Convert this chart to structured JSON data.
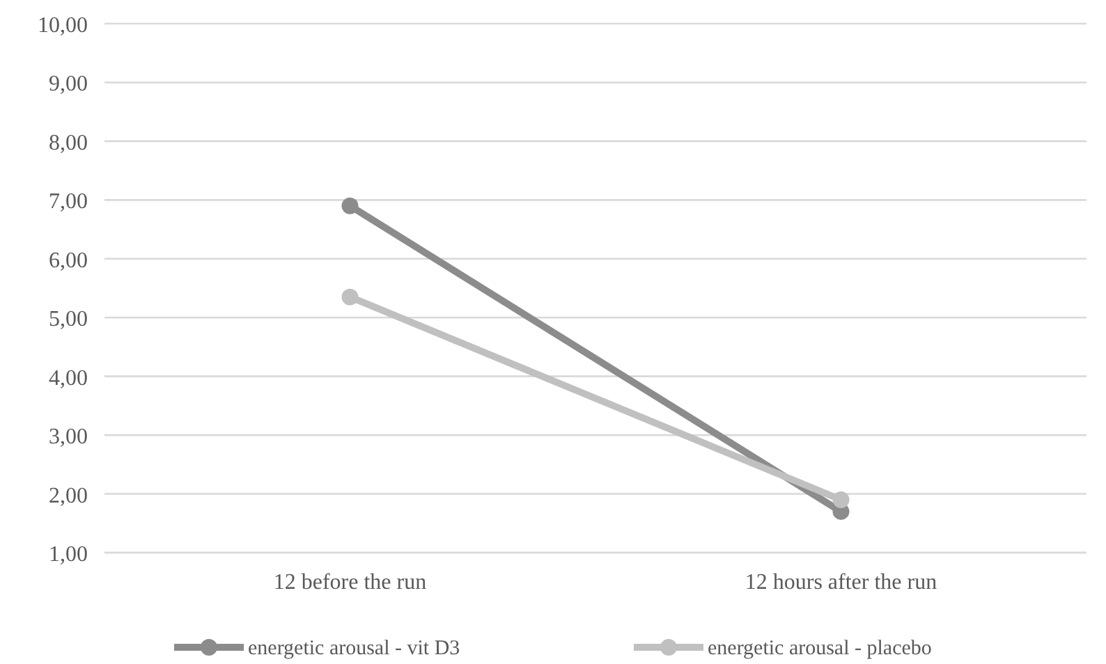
{
  "chart_data": {
    "type": "line",
    "categories": [
      "12 before the run",
      "12 hours after the run"
    ],
    "series": [
      {
        "name": "energetic arousal - vit D3",
        "color": "#8c8c8c",
        "values": [
          6.9,
          1.7
        ]
      },
      {
        "name": "energetic arousal - placebo",
        "color": "#c0c0c0",
        "values": [
          5.35,
          1.9
        ]
      }
    ],
    "ylim": [
      1,
      10
    ],
    "yticks": [
      {
        "value": 1,
        "label": "1,00"
      },
      {
        "value": 2,
        "label": "2,00"
      },
      {
        "value": 3,
        "label": "3,00"
      },
      {
        "value": 4,
        "label": "4,00"
      },
      {
        "value": 5,
        "label": "5,00"
      },
      {
        "value": 6,
        "label": "6,00"
      },
      {
        "value": 7,
        "label": "7,00"
      },
      {
        "value": 8,
        "label": "8,00"
      },
      {
        "value": 9,
        "label": "9,00"
      },
      {
        "value": 10,
        "label": "10,00"
      }
    ],
    "grid": "y",
    "legend": "bottom",
    "marker": "circle",
    "line_style": "solid"
  }
}
